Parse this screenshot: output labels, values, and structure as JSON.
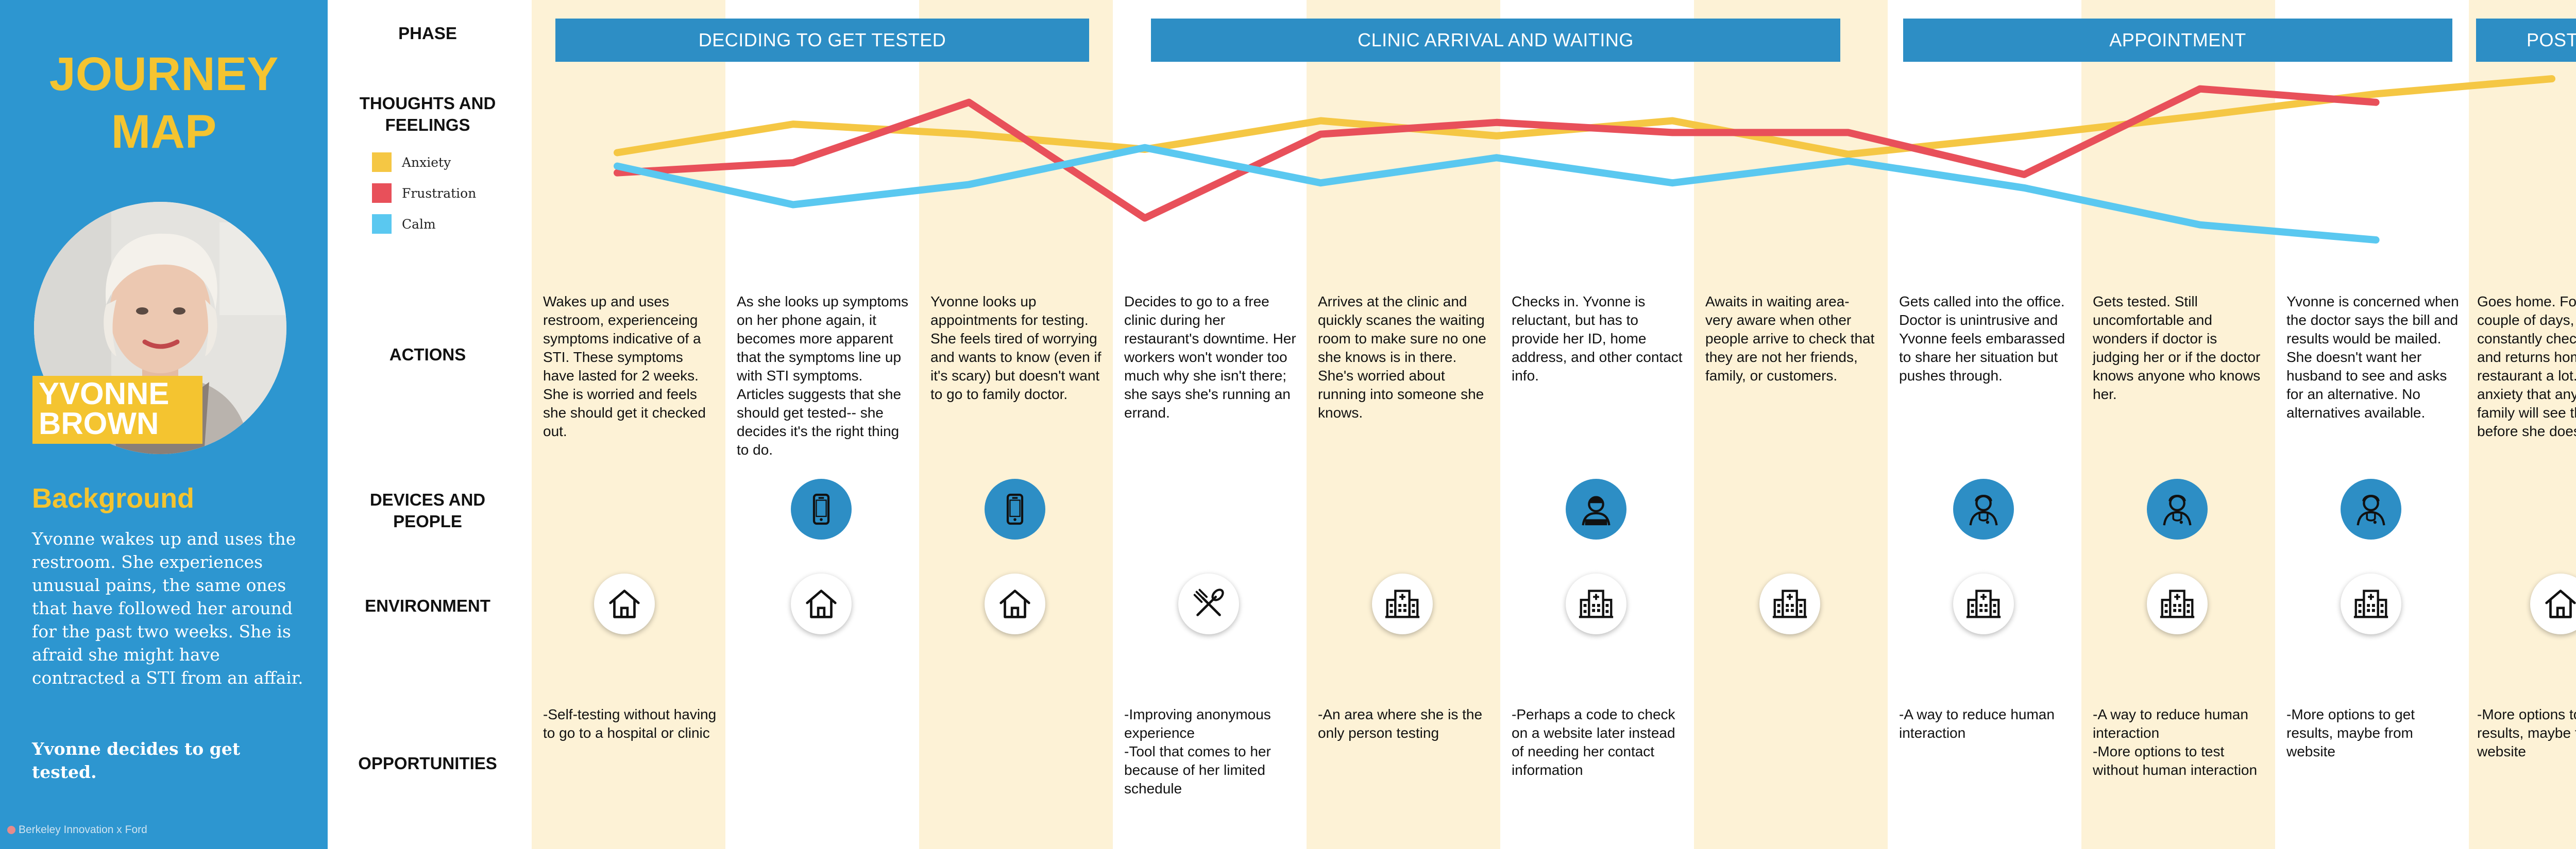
{
  "sidebar": {
    "title": "JOURNEY\nMAP",
    "persona_name": "YVONNE\nBROWN",
    "background_heading": "Background",
    "background_text": "Yvonne wakes up and uses the restroom. She experiences unusual pains, the same ones that have followed her around for the past two weeks. She is afraid she might have contracted a STI from an affair.",
    "background_cta": "Yvonne decides to get tested.",
    "credit": "Berkeley Innovation x Ford"
  },
  "row_labels": {
    "phase": "PHASE",
    "thoughts": "THOUGHTS AND FEELINGS",
    "actions": "ACTIONS",
    "devices": "DEVICES AND PEOPLE",
    "environment": "ENVIRONMENT",
    "opportunities": "OPPORTUNITIES"
  },
  "phases": [
    "DECIDING TO GET TESTED",
    "CLINIC ARRIVAL AND WAITING",
    "APPOINTMENT",
    "POST"
  ],
  "colors": {
    "sidebar": "#2d96d0",
    "accent_yellow": "#f4c430",
    "phase_blue": "#2d8ec5",
    "stripe": "#fdf2d6",
    "anxiety": "#f5c744",
    "frustration": "#e8505a",
    "calm": "#5ac8f0"
  },
  "chart_data": {
    "type": "line",
    "x": [
      1,
      2,
      3,
      4,
      5,
      6,
      7,
      8,
      9,
      10,
      11,
      12
    ],
    "ylim": [
      0,
      10
    ],
    "series": [
      {
        "name": "Anxiety",
        "color": "#f5c744",
        "values": [
          5.2,
          6.9,
          6.3,
          5.4,
          7.1,
          6.2,
          7.1,
          5.1,
          6.2,
          7.4,
          8.7,
          9.6
        ]
      },
      {
        "name": "Frustration",
        "color": "#e8505a",
        "values": [
          4.0,
          4.6,
          8.2,
          1.3,
          6.3,
          7.0,
          6.4,
          6.4,
          3.9,
          9.0,
          8.2,
          null
        ]
      },
      {
        "name": "Calm",
        "color": "#5ac8f0",
        "values": [
          4.4,
          2.1,
          3.3,
          5.5,
          3.4,
          4.9,
          3.4,
          4.7,
          3.1,
          0.9,
          0.0,
          null
        ]
      }
    ]
  },
  "columns": [
    {
      "action": "Wakes up and uses restroom, experienceing symptoms indicative of a STI. These symptoms have lasted for 2 weeks. She is worried and feels she should get it checked out.",
      "device_icon": "",
      "env_icon": "house-icon",
      "opportunity": "-Self-testing without having to go to a hospital or clinic"
    },
    {
      "action": "As she looks up symptoms on her phone again, it becomes more apparent that the symptoms line up with STI symptoms. Articles suggests that she should get tested-- she decides it's the right thing to do.",
      "device_icon": "phone-icon",
      "env_icon": "house-icon",
      "opportunity": ""
    },
    {
      "action": "Yvonne looks up appointments for testing. She feels tired of worrying and wants to know (even if it's scary) but doesn't want to go to family doctor.",
      "device_icon": "phone-icon",
      "env_icon": "house-icon",
      "opportunity": ""
    },
    {
      "action": "Decides to go to a free clinic during her restaurant's downtime. Her workers won't wonder too much why she isn't there; she says she's running an errand.",
      "device_icon": "",
      "env_icon": "utensils-icon",
      "opportunity": "-Improving anonymous experience\n-Tool that comes to her because of her limited schedule"
    },
    {
      "action": "Arrives at the clinic and quickly scanes the waiting room to make sure no one she knows is in there. She's worried about running into someone she knows.",
      "device_icon": "",
      "env_icon": "hospital-icon",
      "opportunity": "-An area where she is the only person testing"
    },
    {
      "action": "Checks in. Yvonne is reluctant, but has to provide her ID, home address, and other contact info.",
      "device_icon": "receptionist-icon",
      "env_icon": "hospital-icon",
      "opportunity": "-Perhaps a code to check on a website later instead of needing her contact information"
    },
    {
      "action": "Awaits in waiting area- very aware when other people arrive to check that they are not her friends, family, or customers.",
      "device_icon": "",
      "env_icon": "hospital-icon",
      "opportunity": ""
    },
    {
      "action": "Gets called into the office. Doctor is unintrusive and Yvonne feels embarassed to share her situation but pushes through.",
      "device_icon": "doctor-icon",
      "env_icon": "hospital-icon",
      "opportunity": "-A way to reduce human interaction"
    },
    {
      "action": "Gets tested. Still uncomfortable and wonders if doctor is judging her or if the doctor knows anyone who knows her.",
      "device_icon": "doctor-icon",
      "env_icon": "hospital-icon",
      "opportunity": "-A way to reduce human interaction\n-More options to test without human interaction"
    },
    {
      "action": "Yvonne is concerned when the doctor says the bill and results would be mailed. She doesn't want her husband to see and asks for an alternative. No alternatives available.",
      "device_icon": "doctor-icon",
      "env_icon": "hospital-icon",
      "opportunity": "-More options to get results, maybe from website"
    },
    {
      "action": "Goes home. For the next couple of days, she constantly checks the mail and returns home from the restaurant a lot. Has anxiety that any of her family will see the mail before she does.",
      "device_icon": "",
      "env_icon": "house-icon",
      "opportunity": "-More options to get results, maybe from website"
    }
  ]
}
